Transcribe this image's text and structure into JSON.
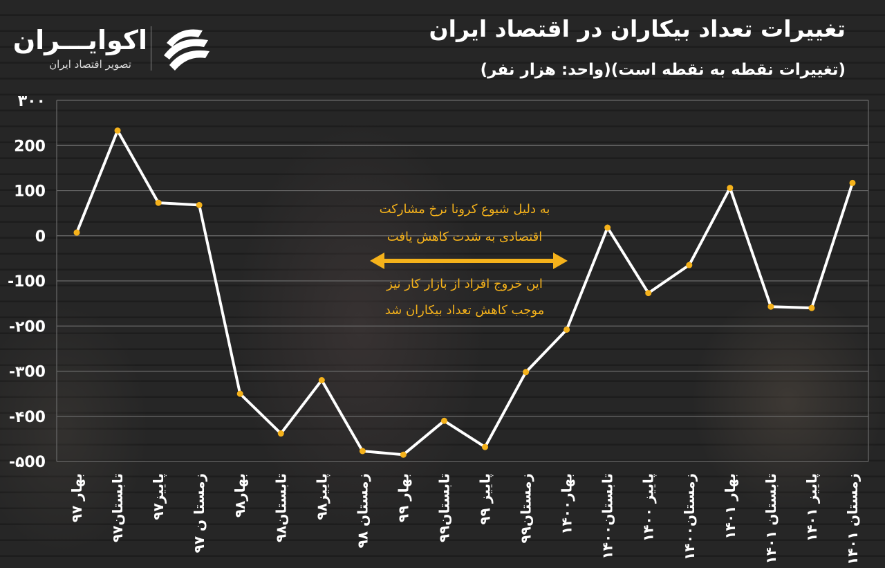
{
  "brand": {
    "name": "اکوایـــران",
    "tagline": "تصویر اقتصاد ایران"
  },
  "chart_data": {
    "type": "line",
    "title": "تغییرات تعداد بیکاران در اقتصاد ایران",
    "subtitle": "(تغییرات نقطه به نقطه است)(واحد: هزار نفر)",
    "ylim": [
      -500,
      300
    ],
    "yticks": [
      {
        "value": 300,
        "label": "۳۰۰"
      },
      {
        "value": 200,
        "label": "200"
      },
      {
        "value": 100,
        "label": "100"
      },
      {
        "value": 0,
        "label": "0"
      },
      {
        "value": -100,
        "label": "-100"
      },
      {
        "value": -200,
        "label": "-۲00"
      },
      {
        "value": -300,
        "label": "-۳00"
      },
      {
        "value": -400,
        "label": "-۴00"
      },
      {
        "value": -500,
        "label": "-۵00"
      }
    ],
    "categories": [
      "بهار ۹۷",
      "تابستان۹۷",
      "پاییز۹۷",
      "زمستا ن ۹۷",
      "بهار۹۸",
      "تابستان۹۸",
      "پاییز۹۸",
      "زمستان ۹۸",
      "بهار ۹۹",
      "تابستان۹۹",
      "پاییز ۹۹",
      "زمستان۹۹",
      "بهار۱۴۰۰",
      "تابستان۱۴۰۰",
      "پاییز ۱۴۰۰",
      "زمستان۱۴۰۰",
      "بهار ۱۴۰۱",
      "تابستان ۱۴۰۱",
      "پاییز ۱۴۰۱",
      "زمستان ۱۴۰۱"
    ],
    "series": [
      {
        "values": [
          7,
          233,
          73,
          68,
          -350,
          -438,
          -320,
          -477,
          -485,
          -410,
          -468,
          -302,
          -208,
          18,
          -127,
          -65,
          106,
          -157,
          -160,
          117
        ]
      }
    ],
    "annotations": [
      "به دلیل شیوع کرونا نرخ مشارکت",
      "اقتصادی به شدت کاهش یافت",
      "این خروج افراد از بازار کار نیز",
      "موجب کاهش تعداد بیکاران شد"
    ],
    "colors": {
      "line": "#ffffff",
      "marker": "#f5b21b",
      "grid": "#6a6a6a",
      "arrow": "#f5b21b"
    },
    "grid": true
  }
}
